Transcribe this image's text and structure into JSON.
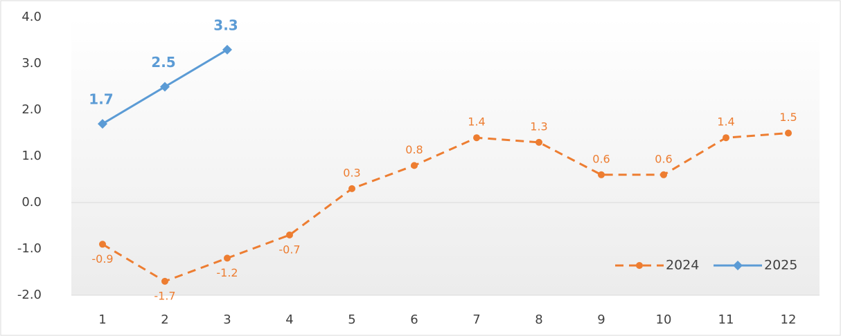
{
  "chart_data": {
    "type": "line",
    "categories": [
      "1",
      "2",
      "3",
      "4",
      "5",
      "6",
      "7",
      "8",
      "9",
      "10",
      "11",
      "12"
    ],
    "series": [
      {
        "name": "2024",
        "color": "#ed7d31",
        "dash": true,
        "marker": "circle",
        "values": [
          -0.9,
          -1.7,
          -1.2,
          -0.7,
          0.3,
          0.8,
          1.4,
          1.3,
          0.6,
          0.6,
          1.4,
          1.5
        ]
      },
      {
        "name": "2025",
        "color": "#5b9bd5",
        "dash": false,
        "marker": "diamond",
        "values": [
          1.7,
          2.5,
          3.3,
          null,
          null,
          null,
          null,
          null,
          null,
          null,
          null,
          null
        ]
      }
    ],
    "ylim": [
      -2,
      4
    ],
    "yticks": [
      {
        "value": -2,
        "label": "-2.0"
      },
      {
        "value": -1,
        "label": "-1.0"
      },
      {
        "value": 0,
        "label": "0.0"
      },
      {
        "value": 1,
        "label": "1.0"
      },
      {
        "value": 2,
        "label": "2.0"
      },
      {
        "value": 3,
        "label": "3.0"
      },
      {
        "value": 4,
        "label": "4.0"
      }
    ],
    "grid": false,
    "legend": "lower right"
  }
}
